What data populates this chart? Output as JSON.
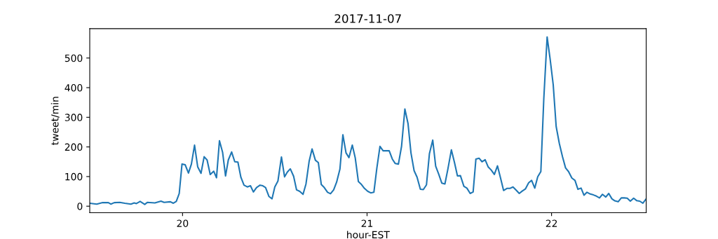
{
  "chart_data": {
    "type": "line",
    "title": "2017-11-07",
    "xlabel": "hour-EST",
    "ylabel": "tweet/min",
    "series": [
      {
        "color": "#1f77b4",
        "x": [
          19.497,
          19.535,
          19.567,
          19.598,
          19.611,
          19.63,
          19.66,
          19.687,
          19.72,
          19.738,
          19.75,
          19.77,
          19.795,
          19.81,
          19.85,
          19.883,
          19.9,
          19.934,
          19.95,
          19.966,
          19.982,
          19.997,
          20.014,
          20.032,
          20.048,
          20.065,
          20.082,
          20.1,
          20.117,
          20.133,
          20.15,
          20.169,
          20.184,
          20.2,
          20.217,
          20.233,
          20.248,
          20.266,
          20.283,
          20.3,
          20.316,
          20.333,
          20.351,
          20.368,
          20.384,
          20.401,
          20.42,
          20.435,
          20.45,
          20.468,
          20.485,
          20.5,
          20.517,
          20.536,
          20.553,
          20.568,
          20.584,
          20.602,
          20.618,
          20.635,
          20.653,
          20.669,
          20.686,
          20.702,
          20.72,
          20.736,
          20.752,
          20.768,
          20.786,
          20.802,
          20.819,
          20.835,
          20.853,
          20.869,
          20.886,
          20.902,
          20.92,
          20.936,
          20.953,
          20.97,
          20.986,
          21.004,
          21.02,
          21.037,
          21.053,
          21.07,
          21.087,
          21.104,
          21.12,
          21.137,
          21.153,
          21.17,
          21.187,
          21.205,
          21.222,
          21.238,
          21.255,
          21.271,
          21.289,
          21.305,
          21.322,
          21.338,
          21.356,
          21.372,
          21.389,
          21.405,
          21.422,
          21.438,
          21.457,
          21.474,
          21.49,
          21.506,
          21.525,
          21.541,
          21.559,
          21.575,
          21.59,
          21.607,
          21.623,
          21.64,
          21.656,
          21.673,
          21.69,
          21.707,
          21.724,
          21.74,
          21.758,
          21.774,
          21.791,
          21.807,
          21.825,
          21.841,
          21.858,
          21.876,
          21.892,
          21.909,
          21.925,
          21.942,
          21.958,
          21.976,
          21.992,
          22.009,
          22.025,
          22.042,
          22.059,
          22.076,
          22.092,
          22.11,
          22.127,
          22.143,
          22.16,
          22.176,
          22.192,
          22.21,
          22.227,
          22.243,
          22.26,
          22.276,
          22.294,
          22.31,
          22.327,
          22.343,
          22.361,
          22.378,
          22.394,
          22.41,
          22.427,
          22.445,
          22.461,
          22.478,
          22.495,
          22.513
        ],
        "values": [
          10,
          7,
          12,
          12,
          7,
          12,
          13,
          10,
          7,
          11,
          9,
          16,
          6,
          13,
          11,
          17,
          13,
          15,
          10,
          16,
          43,
          142,
          140,
          112,
          142,
          206,
          133,
          111,
          167,
          156,
          107,
          118,
          96,
          221,
          182,
          102,
          156,
          183,
          150,
          149,
          98,
          71,
          65,
          69,
          48,
          63,
          71,
          69,
          63,
          33,
          25,
          65,
          85,
          166,
          99,
          115,
          126,
          101,
          55,
          50,
          40,
          75,
          151,
          193,
          155,
          147,
          73,
          63,
          47,
          42,
          55,
          81,
          125,
          241,
          180,
          164,
          206,
          163,
          83,
          73,
          60,
          50,
          45,
          47,
          128,
          202,
          187,
          187,
          187,
          159,
          144,
          142,
          202,
          328,
          279,
          180,
          120,
          98,
          57,
          56,
          72,
          177,
          223,
          135,
          107,
          78,
          75,
          125,
          190,
          147,
          102,
          103,
          67,
          61,
          43,
          48,
          159,
          162,
          150,
          157,
          133,
          122,
          107,
          136,
          94,
          53,
          60,
          60,
          65,
          55,
          43,
          51,
          58,
          79,
          87,
          61,
          99,
          117,
          363,
          571,
          498,
          410,
          269,
          212,
          168,
          129,
          117,
          95,
          87,
          57,
          61,
          37,
          47,
          41,
          38,
          34,
          28,
          40,
          31,
          43,
          25,
          18,
          15,
          28,
          28,
          27,
          17,
          27,
          19,
          17,
          10,
          25
        ]
      }
    ],
    "xlim": [
      19.497,
      22.513
    ],
    "ylim": [
      -22,
      599
    ],
    "xticks": [
      20,
      21,
      22
    ],
    "yticks": [
      0,
      100,
      200,
      300,
      400,
      500
    ]
  }
}
